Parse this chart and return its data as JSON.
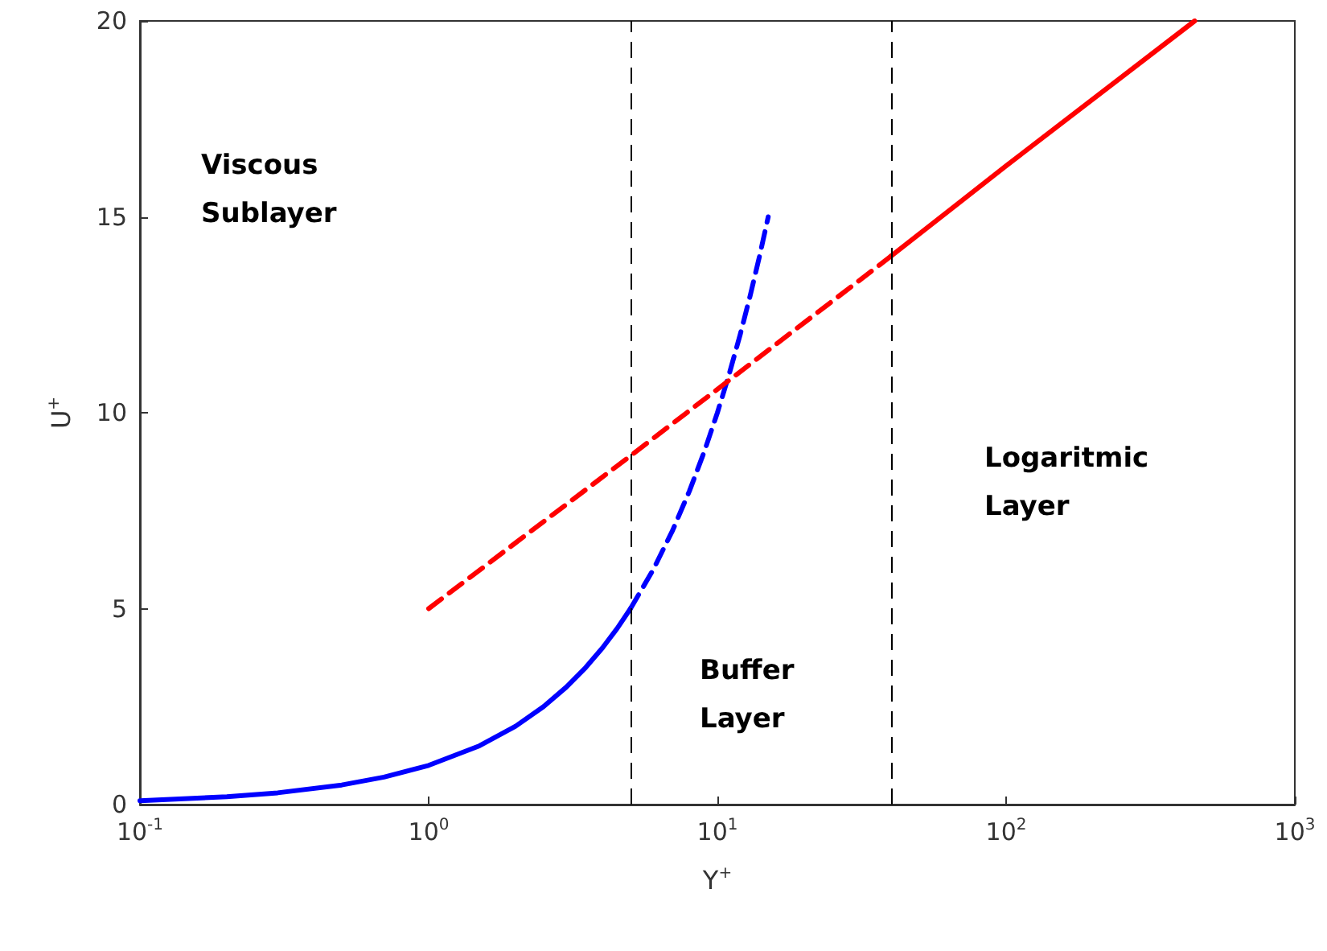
{
  "chart_data": {
    "type": "line",
    "xlabel": "Y$^{+}$",
    "ylabel": "U$^{+}$",
    "log": "x",
    "xlim": [
      0.1,
      1000
    ],
    "xticks": [
      {
        "value": 0.1,
        "label": "10$^{-1}$"
      },
      {
        "value": 1,
        "label": "10$^{0}$"
      },
      {
        "value": 10,
        "label": "10$^{1}$"
      },
      {
        "value": 100,
        "label": "10$^{2}$"
      },
      {
        "value": 1000,
        "label": "10$^{3}$"
      }
    ],
    "ylim": [
      0,
      20
    ],
    "yticks": [
      0,
      5,
      10,
      15,
      20
    ],
    "grid": false,
    "marker": "none",
    "series": [
      {
        "color": "#0000ff",
        "line_style": "solid",
        "x": [
          0.1,
          0.2,
          0.3,
          0.5,
          0.7,
          1,
          1.5,
          2,
          2.5,
          3,
          3.5,
          4,
          4.5,
          5
        ],
        "values": [
          0.1,
          0.2,
          0.3,
          0.5,
          0.7,
          1,
          1.5,
          2,
          2.5,
          3,
          3.5,
          4,
          4.5,
          5
        ]
      },
      {
        "color": "#0000ff",
        "line_style": "dashed",
        "x": [
          5,
          6,
          7,
          8,
          9,
          10,
          11,
          12,
          13,
          14,
          15
        ],
        "values": [
          5,
          6,
          7,
          8,
          9,
          10,
          11,
          12,
          13,
          14,
          15
        ]
      },
      {
        "color": "#ff0000",
        "line_style": "dashed",
        "x": [
          1,
          5,
          10,
          40
        ],
        "values": [
          5,
          8.9,
          10.6,
          14
        ]
      },
      {
        "color": "#ff0000",
        "line_style": "solid",
        "x": [
          40,
          100,
          450
        ],
        "values": [
          14,
          16.3,
          20
        ]
      }
    ],
    "ref_lines": [
      {
        "axis": "x",
        "value": 5,
        "color": "#000000",
        "line_style": "dashed"
      },
      {
        "axis": "x",
        "value": 40,
        "color": "#000000",
        "line_style": "dashed"
      }
    ],
    "annotations": [
      "Viscous\nSublayer",
      "Buffer\nLayer",
      "Logaritmic\nLayer"
    ]
  }
}
